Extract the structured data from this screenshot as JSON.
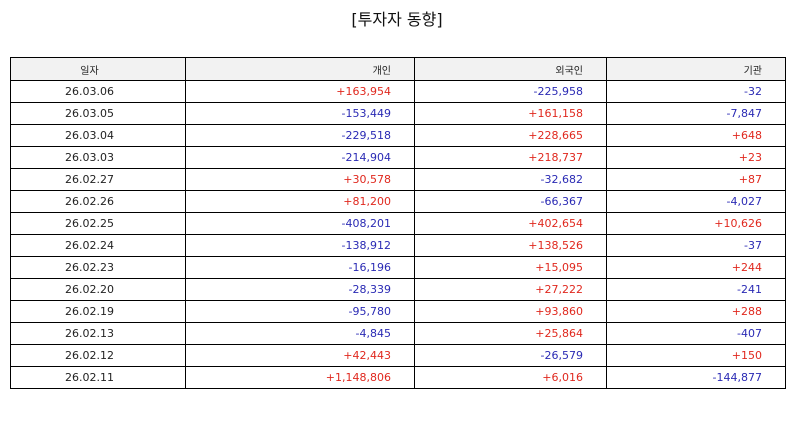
{
  "title": "[투자자 동향]",
  "columns": [
    "일자",
    "개인",
    "외국인",
    "기관"
  ],
  "colors": {
    "positive": "#e0281e",
    "negative": "#2a2ab4"
  },
  "rows": [
    [
      "26.03.06",
      "+163,954",
      "-225,958",
      "-32"
    ],
    [
      "26.03.05",
      "-153,449",
      "+161,158",
      "-7,847"
    ],
    [
      "26.03.04",
      "-229,518",
      "+228,665",
      "+648"
    ],
    [
      "26.03.03",
      "-214,904",
      "+218,737",
      "+23"
    ],
    [
      "26.02.27",
      "+30,578",
      "-32,682",
      "+87"
    ],
    [
      "26.02.26",
      "+81,200",
      "-66,367",
      "-4,027"
    ],
    [
      "26.02.25",
      "-408,201",
      "+402,654",
      "+10,626"
    ],
    [
      "26.02.24",
      "-138,912",
      "+138,526",
      "-37"
    ],
    [
      "26.02.23",
      "-16,196",
      "+15,095",
      "+244"
    ],
    [
      "26.02.20",
      "-28,339",
      "+27,222",
      "-241"
    ],
    [
      "26.02.19",
      "-95,780",
      "+93,860",
      "+288"
    ],
    [
      "26.02.13",
      "-4,845",
      "+25,864",
      "-407"
    ],
    [
      "26.02.12",
      "+42,443",
      "-26,579",
      "+150"
    ],
    [
      "26.02.11",
      "+1,148,806",
      "+6,016",
      "-144,877"
    ]
  ]
}
